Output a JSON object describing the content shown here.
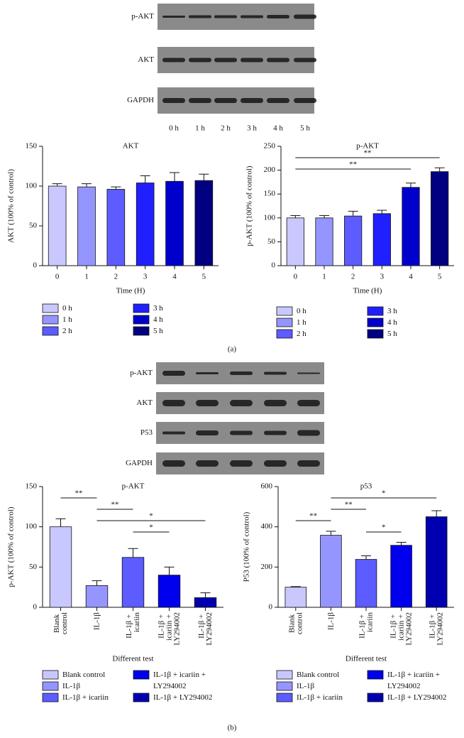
{
  "blot_a": {
    "rows": [
      "p-AKT",
      "AKT",
      "GAPDH"
    ],
    "lanes": [
      "0 h",
      "1 h",
      "2 h",
      "3 h",
      "4 h",
      "5 h"
    ]
  },
  "blot_b": {
    "rows": [
      "p-AKT",
      "AKT",
      "P53",
      "GAPDH"
    ]
  },
  "panel_labels": [
    "(a)",
    "(b)"
  ],
  "chart_data": [
    {
      "type": "bar",
      "title": "AKT",
      "xlabel": "Time (H)",
      "ylabel": "AKT (100% of control)",
      "categories": [
        "0",
        "1",
        "2",
        "3",
        "4",
        "5"
      ],
      "values": [
        100,
        99,
        96,
        104,
        106,
        107
      ],
      "errors": [
        3,
        4,
        3,
        9,
        11,
        8
      ],
      "colors": [
        "#c8c8ff",
        "#9595ff",
        "#5c5cff",
        "#2020ff",
        "#0000cc",
        "#000080"
      ],
      "legend": [
        "0 h",
        "1 h",
        "2 h",
        "3 h",
        "4 h",
        "5 h"
      ],
      "ylim": [
        0,
        150
      ],
      "yticks": [
        0,
        50,
        100,
        150
      ],
      "significance": []
    },
    {
      "type": "bar",
      "title": "p-AKT",
      "xlabel": "Time (H)",
      "ylabel": "p-AKT (100% of control)",
      "categories": [
        "0",
        "1",
        "2",
        "3",
        "4",
        "5"
      ],
      "values": [
        100,
        100,
        104,
        109,
        164,
        197
      ],
      "errors": [
        5,
        5,
        10,
        7,
        9,
        8
      ],
      "colors": [
        "#c8c8ff",
        "#9595ff",
        "#5c5cff",
        "#2020ff",
        "#0000cc",
        "#000080"
      ],
      "legend": [
        "0 h",
        "1 h",
        "2 h",
        "3 h",
        "4 h",
        "5 h"
      ],
      "ylim": [
        0,
        250
      ],
      "yticks": [
        0,
        50,
        100,
        150,
        200,
        250
      ],
      "significance": [
        {
          "from": 0,
          "to": 5,
          "label": "**"
        },
        {
          "from": 0,
          "to": 4,
          "label": "**"
        }
      ]
    },
    {
      "type": "bar",
      "title": "p-AKT",
      "xlabel": "Different test",
      "ylabel": "p-AKT (100% of control)",
      "categories": [
        "Blank control",
        "IL-1β",
        "IL-1β + icariin",
        "IL-1β + icariin + LY294002",
        "IL-1β + LY294002"
      ],
      "values": [
        100,
        27,
        62,
        40,
        12
      ],
      "errors": [
        10,
        6,
        11,
        10,
        6
      ],
      "colors": [
        "#c8c8ff",
        "#9595ff",
        "#5c5cff",
        "#0000ee",
        "#0000b0"
      ],
      "legend": [
        "Blank control",
        "IL-1β",
        "IL-1β + icariin",
        "IL-1β + icariin + LY294002",
        "IL-1β + LY294002"
      ],
      "ylim": [
        0,
        150
      ],
      "yticks": [
        0,
        50,
        100,
        150
      ],
      "significance": [
        {
          "from": 0,
          "to": 1,
          "label": "**"
        },
        {
          "from": 1,
          "to": 2,
          "label": "**"
        },
        {
          "from": 1,
          "to": 4,
          "label": "*"
        },
        {
          "from": 2,
          "to": 3,
          "label": "*"
        }
      ]
    },
    {
      "type": "bar",
      "title": "p53",
      "xlabel": "Different test",
      "ylabel": "P53 (100% of control)",
      "categories": [
        "Blank control",
        "IL-1β",
        "IL-1β + icariin",
        "IL-1β + icariin + LY294002",
        "IL-1β + LY294002"
      ],
      "values": [
        100,
        358,
        238,
        308,
        450
      ],
      "errors": [
        3,
        20,
        18,
        15,
        30
      ],
      "colors": [
        "#c8c8ff",
        "#9595ff",
        "#5c5cff",
        "#0000ee",
        "#0000b0"
      ],
      "legend": [
        "Blank control",
        "IL-1β",
        "IL-1β + icariin",
        "IL-1β + icariin + LY294002",
        "IL-1β + LY294002"
      ],
      "ylim": [
        0,
        600
      ],
      "yticks": [
        0,
        200,
        400,
        600
      ],
      "significance": [
        {
          "from": 1,
          "to": 4,
          "label": "*"
        },
        {
          "from": 1,
          "to": 2,
          "label": "**"
        },
        {
          "from": 0,
          "to": 1,
          "label": "**"
        },
        {
          "from": 2,
          "to": 3,
          "label": "*"
        }
      ]
    }
  ]
}
